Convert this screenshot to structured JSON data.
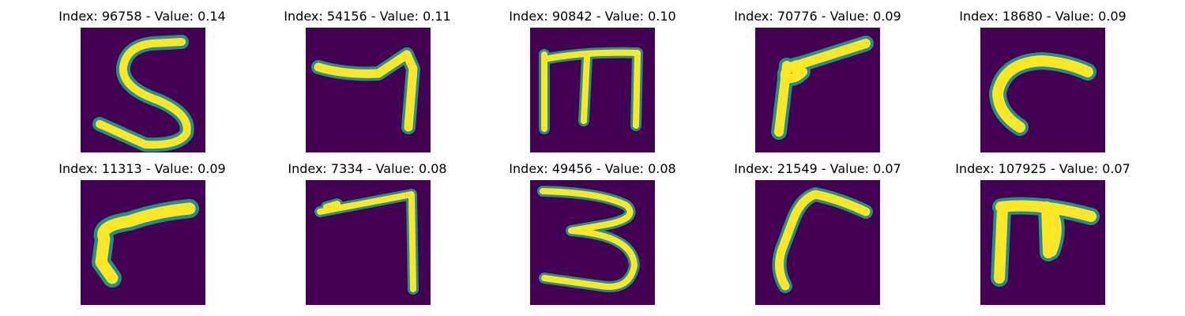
{
  "figure": {
    "panels": [
      {
        "title": "Index: 96758 - Value: 0.14",
        "glyph": "digit-5"
      },
      {
        "title": "Index: 54156 - Value: 0.11",
        "glyph": "digit-7"
      },
      {
        "title": "Index: 90842 - Value: 0.10",
        "glyph": "letter-m"
      },
      {
        "title": "Index: 70776 - Value: 0.09",
        "glyph": "digit-7-slanted"
      },
      {
        "title": "Index: 18680 - Value: 0.09",
        "glyph": "letter-c"
      },
      {
        "title": "Index: 11313 - Value: 0.09",
        "glyph": "digit-7-slanted"
      },
      {
        "title": "Index: 7334 - Value: 0.08",
        "glyph": "digit-7"
      },
      {
        "title": "Index: 49456 - Value: 0.08",
        "glyph": "digit-3"
      },
      {
        "title": "Index: 21549 - Value: 0.07",
        "glyph": "digit-7-slanted"
      },
      {
        "title": "Index: 107925 - Value: 0.07",
        "glyph": "glyph-pi"
      }
    ]
  },
  "colors": {
    "background": "#440154",
    "stroke_core": "#fde725",
    "stroke_edge": "#21918c"
  }
}
